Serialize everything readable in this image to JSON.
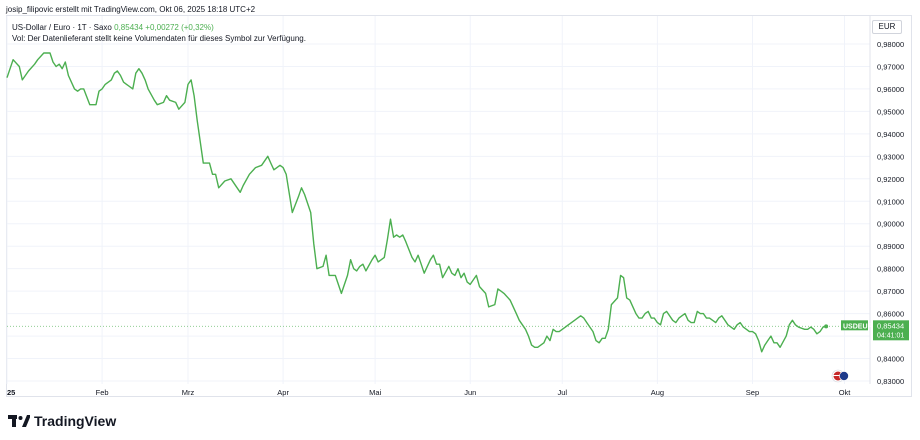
{
  "header": {
    "attribution": "josip_filipovic erstellt mit TradingView.com, Okt 06, 2025 18:18 UTC+2"
  },
  "legend": {
    "title": "US-Dollar / Euro · 1T · Saxo",
    "price": "0,85434",
    "change": "+0,00272 (+0,32%)",
    "volume_note": "Vol: Der Datenlieferant stellt keine Volumendaten für dieses Symbol zur Verfügung."
  },
  "currency_button": "EUR",
  "price_label": {
    "symbol": "USDEUR",
    "price": "0,85434",
    "countdown": "04:41:01"
  },
  "footer": {
    "brand": "TradingView"
  },
  "colors": {
    "line": "#4caf50",
    "grid": "#f0f3fa",
    "axis_text": "#131722",
    "tag_bg": "#4caf50"
  },
  "chart_data": {
    "type": "line",
    "title": "US-Dollar / Euro · 1T · Saxo",
    "ylim": [
      0.83,
      0.98
    ],
    "y_ticks": [
      "0,98000",
      "0,97000",
      "0,96000",
      "0,95000",
      "0,94000",
      "0,93000",
      "0,92000",
      "0,91000",
      "0,90000",
      "0,89000",
      "0,88000",
      "0,87000",
      "0,86000",
      "0,85000",
      "0,84000",
      "0,83000"
    ],
    "y_tick_values": [
      0.98,
      0.97,
      0.96,
      0.95,
      0.94,
      0.93,
      0.92,
      0.91,
      0.9,
      0.89,
      0.88,
      0.87,
      0.86,
      0.85,
      0.84,
      0.83
    ],
    "x_labels": [
      "25",
      "Feb",
      "Mrz",
      "Apr",
      "Mai",
      "Jun",
      "Jul",
      "Aug",
      "Sep",
      "Okt"
    ],
    "x_label_days": [
      1,
      32,
      60,
      91,
      121,
      152,
      182,
      213,
      244,
      274
    ],
    "x_range_days": [
      1,
      281
    ],
    "series": [
      {
        "values": [
          [
            1,
            0.965
          ],
          [
            3,
            0.973
          ],
          [
            5,
            0.97
          ],
          [
            6,
            0.964
          ],
          [
            8,
            0.968
          ],
          [
            10,
            0.971
          ],
          [
            11,
            0.973
          ],
          [
            13,
            0.976
          ],
          [
            15,
            0.976
          ],
          [
            16,
            0.972
          ],
          [
            17,
            0.97
          ],
          [
            18,
            0.971
          ],
          [
            19,
            0.969
          ],
          [
            20,
            0.972
          ],
          [
            21,
            0.966
          ],
          [
            23,
            0.96
          ],
          [
            24,
            0.959
          ],
          [
            25,
            0.96
          ],
          [
            26,
            0.96
          ],
          [
            28,
            0.953
          ],
          [
            30,
            0.953
          ],
          [
            31,
            0.959
          ],
          [
            32,
            0.96
          ],
          [
            33,
            0.962
          ],
          [
            35,
            0.964
          ],
          [
            36,
            0.967
          ],
          [
            37,
            0.968
          ],
          [
            38,
            0.966
          ],
          [
            39,
            0.963
          ],
          [
            40,
            0.962
          ],
          [
            42,
            0.96
          ],
          [
            43,
            0.967
          ],
          [
            44,
            0.969
          ],
          [
            45,
            0.967
          ],
          [
            46,
            0.964
          ],
          [
            47,
            0.96
          ],
          [
            49,
            0.955
          ],
          [
            50,
            0.953
          ],
          [
            52,
            0.954
          ],
          [
            53,
            0.957
          ],
          [
            54,
            0.955
          ],
          [
            56,
            0.954
          ],
          [
            57,
            0.951
          ],
          [
            59,
            0.954
          ],
          [
            60,
            0.962
          ],
          [
            61,
            0.964
          ],
          [
            62,
            0.957
          ],
          [
            63,
            0.946
          ],
          [
            65,
            0.927
          ],
          [
            67,
            0.927
          ],
          [
            68,
            0.922
          ],
          [
            69,
            0.922
          ],
          [
            70,
            0.916
          ],
          [
            72,
            0.919
          ],
          [
            74,
            0.92
          ],
          [
            76,
            0.916
          ],
          [
            77,
            0.914
          ],
          [
            78,
            0.917
          ],
          [
            80,
            0.922
          ],
          [
            82,
            0.925
          ],
          [
            84,
            0.926
          ],
          [
            86,
            0.93
          ],
          [
            87,
            0.927
          ],
          [
            88,
            0.924
          ],
          [
            90,
            0.926
          ],
          [
            91,
            0.925
          ],
          [
            92,
            0.922
          ],
          [
            94,
            0.905
          ],
          [
            96,
            0.912
          ],
          [
            97,
            0.916
          ],
          [
            98,
            0.913
          ],
          [
            100,
            0.905
          ],
          [
            101,
            0.891
          ],
          [
            102,
            0.88
          ],
          [
            104,
            0.881
          ],
          [
            105,
            0.886
          ],
          [
            106,
            0.877
          ],
          [
            108,
            0.877
          ],
          [
            110,
            0.869
          ],
          [
            112,
            0.877
          ],
          [
            113,
            0.884
          ],
          [
            114,
            0.88
          ],
          [
            115,
            0.879
          ],
          [
            116,
            0.881
          ],
          [
            117,
            0.882
          ],
          [
            118,
            0.879
          ],
          [
            120,
            0.884
          ],
          [
            121,
            0.886
          ],
          [
            122,
            0.883
          ],
          [
            124,
            0.885
          ],
          [
            125,
            0.893
          ],
          [
            126,
            0.902
          ],
          [
            127,
            0.894
          ],
          [
            128,
            0.895
          ],
          [
            129,
            0.894
          ],
          [
            130,
            0.895
          ],
          [
            131,
            0.892
          ],
          [
            133,
            0.885
          ],
          [
            134,
            0.883
          ],
          [
            135,
            0.886
          ],
          [
            136,
            0.882
          ],
          [
            137,
            0.878
          ],
          [
            139,
            0.884
          ],
          [
            140,
            0.886
          ],
          [
            141,
            0.882
          ],
          [
            142,
            0.882
          ],
          [
            143,
            0.876
          ],
          [
            145,
            0.881
          ],
          [
            146,
            0.878
          ],
          [
            147,
            0.877
          ],
          [
            148,
            0.88
          ],
          [
            149,
            0.876
          ],
          [
            150,
            0.878
          ],
          [
            151,
            0.874
          ],
          [
            152,
            0.873
          ],
          [
            154,
            0.877
          ],
          [
            155,
            0.872
          ],
          [
            157,
            0.869
          ],
          [
            158,
            0.863
          ],
          [
            160,
            0.864
          ],
          [
            161,
            0.871
          ],
          [
            162,
            0.87
          ],
          [
            163,
            0.869
          ],
          [
            165,
            0.866
          ],
          [
            167,
            0.86
          ],
          [
            168,
            0.857
          ],
          [
            170,
            0.853
          ],
          [
            171,
            0.85
          ],
          [
            172,
            0.846
          ],
          [
            173,
            0.845
          ],
          [
            174,
            0.845
          ],
          [
            175,
            0.846
          ],
          [
            176,
            0.847
          ],
          [
            177,
            0.85
          ],
          [
            178,
            0.848
          ],
          [
            179,
            0.853
          ],
          [
            180,
            0.852
          ],
          [
            181,
            0.852
          ],
          [
            182,
            0.853
          ],
          [
            183,
            0.854
          ],
          [
            184,
            0.855
          ],
          [
            186,
            0.857
          ],
          [
            187,
            0.858
          ],
          [
            188,
            0.859
          ],
          [
            189,
            0.858
          ],
          [
            190,
            0.856
          ],
          [
            192,
            0.852
          ],
          [
            193,
            0.848
          ],
          [
            194,
            0.847
          ],
          [
            195,
            0.849
          ],
          [
            196,
            0.849
          ],
          [
            197,
            0.853
          ],
          [
            198,
            0.864
          ],
          [
            200,
            0.867
          ],
          [
            201,
            0.877
          ],
          [
            202,
            0.876
          ],
          [
            203,
            0.867
          ],
          [
            204,
            0.866
          ],
          [
            206,
            0.86
          ],
          [
            207,
            0.858
          ],
          [
            208,
            0.858
          ],
          [
            209,
            0.86
          ],
          [
            210,
            0.861
          ],
          [
            211,
            0.858
          ],
          [
            212,
            0.858
          ],
          [
            213,
            0.856
          ],
          [
            214,
            0.855
          ],
          [
            215,
            0.86
          ],
          [
            216,
            0.861
          ],
          [
            218,
            0.857
          ],
          [
            219,
            0.856
          ],
          [
            220,
            0.858
          ],
          [
            221,
            0.859
          ],
          [
            222,
            0.86
          ],
          [
            223,
            0.857
          ],
          [
            224,
            0.856
          ],
          [
            225,
            0.856
          ],
          [
            226,
            0.861
          ],
          [
            227,
            0.86
          ],
          [
            228,
            0.86
          ],
          [
            229,
            0.858
          ],
          [
            230,
            0.858
          ],
          [
            231,
            0.857
          ],
          [
            232,
            0.856
          ],
          [
            233,
            0.858
          ],
          [
            234,
            0.859
          ],
          [
            235,
            0.857
          ],
          [
            236,
            0.855
          ],
          [
            237,
            0.854
          ],
          [
            238,
            0.853
          ],
          [
            239,
            0.855
          ],
          [
            240,
            0.856
          ],
          [
            241,
            0.854
          ],
          [
            242,
            0.853
          ],
          [
            243,
            0.852
          ],
          [
            244,
            0.852
          ],
          [
            245,
            0.851
          ],
          [
            246,
            0.848
          ],
          [
            247,
            0.843
          ],
          [
            248,
            0.846
          ],
          [
            249,
            0.848
          ],
          [
            250,
            0.85
          ],
          [
            251,
            0.847
          ],
          [
            252,
            0.847
          ],
          [
            253,
            0.845
          ],
          [
            255,
            0.85
          ],
          [
            256,
            0.855
          ],
          [
            257,
            0.857
          ],
          [
            258,
            0.855
          ],
          [
            259,
            0.854
          ],
          [
            261,
            0.853
          ],
          [
            262,
            0.853
          ],
          [
            263,
            0.854
          ],
          [
            264,
            0.853
          ],
          [
            265,
            0.851
          ],
          [
            266,
            0.852
          ],
          [
            267,
            0.854
          ],
          [
            268,
            0.85434
          ]
        ]
      }
    ]
  }
}
